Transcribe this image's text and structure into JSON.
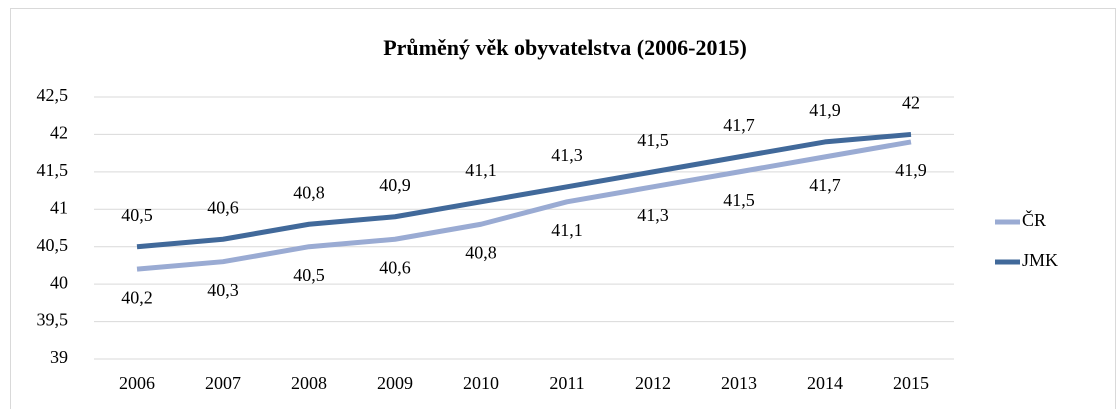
{
  "chart_data": {
    "type": "line",
    "title": "Průměný věk obyvatelstva (2006-2015)",
    "categories": [
      "2006",
      "2007",
      "2008",
      "2009",
      "2010",
      "2011",
      "2012",
      "2013",
      "2014",
      "2015"
    ],
    "series": [
      {
        "name": "ČR",
        "color": "#9aabd3",
        "values": [
          40.2,
          40.3,
          40.5,
          40.6,
          40.8,
          41.1,
          41.3,
          41.5,
          41.7,
          41.9
        ],
        "value_labels": [
          "40,2",
          "40,3",
          "40,5",
          "40,6",
          "40,8",
          "41,1",
          "41,3",
          "41,5",
          "41,7",
          "41,9"
        ]
      },
      {
        "name": "JMK",
        "color": "#41699a",
        "values": [
          40.5,
          40.6,
          40.8,
          40.9,
          41.1,
          41.3,
          41.5,
          41.7,
          41.9,
          42
        ],
        "value_labels": [
          "40,5",
          "40,6",
          "40,8",
          "40,9",
          "41,1",
          "41,3",
          "41,5",
          "41,7",
          "41,9",
          "42"
        ]
      }
    ],
    "ylim": [
      39,
      42.5
    ],
    "yticks": [
      39,
      {
        "value": 39.5,
        "label": "39,5"
      },
      40,
      {
        "value": 40.5,
        "label": "40,5"
      },
      41,
      {
        "value": 41.5,
        "label": "41,5"
      },
      42,
      {
        "value": 42.5,
        "label": "42,5"
      }
    ],
    "grid": true,
    "legend": "right"
  }
}
